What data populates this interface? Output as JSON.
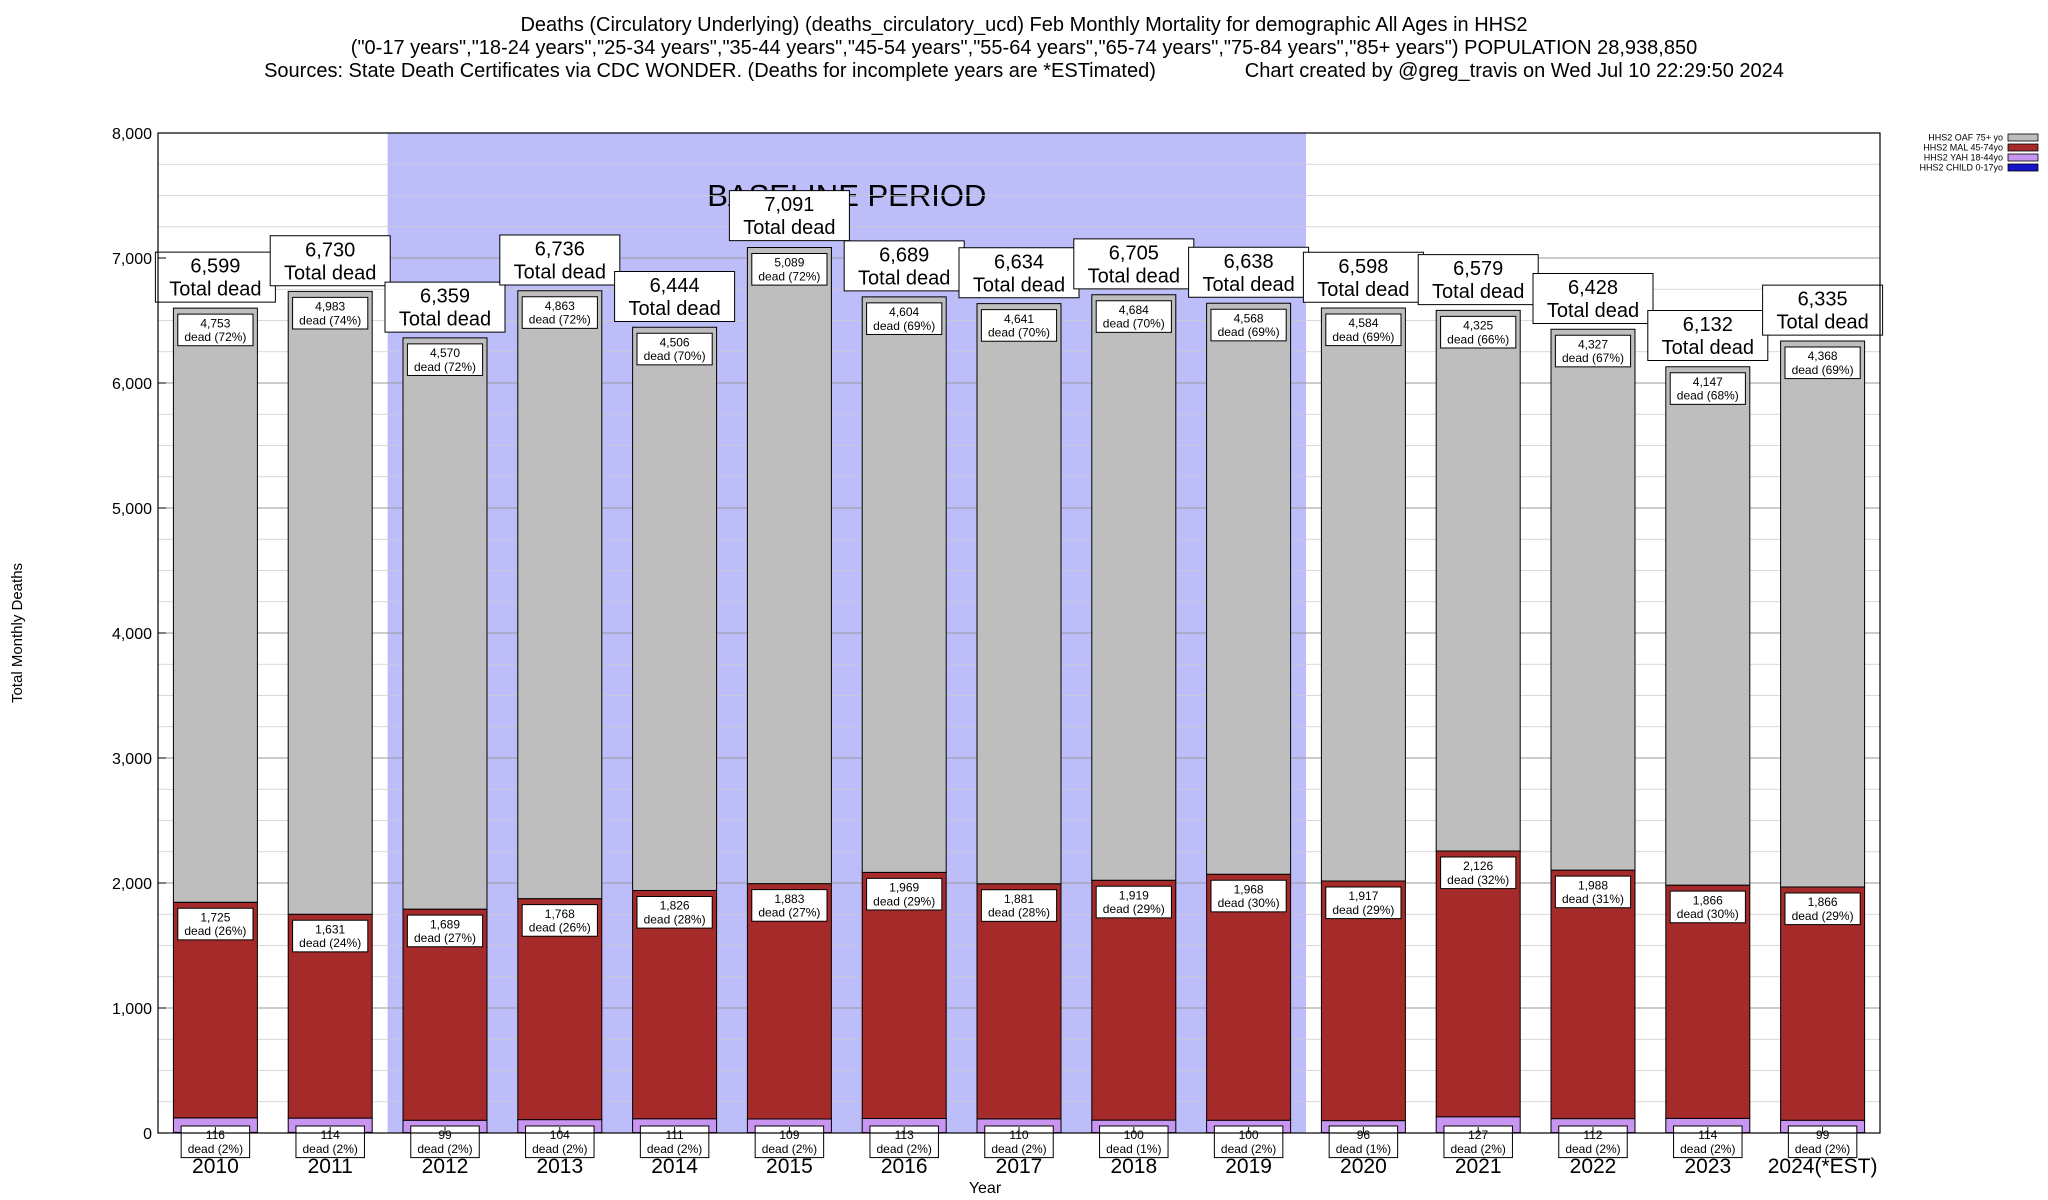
{
  "titles": {
    "line1": "Deaths (Circulatory Underlying) (deaths_circulatory_ucd) Feb Monthly Mortality for demographic All Ages in HHS2",
    "line2": "(\"0-17 years\",\"18-24 years\",\"25-34 years\",\"35-44 years\",\"45-54 years\",\"55-64 years\",\"65-74 years\",\"75-84 years\",\"85+ years\") POPULATION 28,938,850",
    "line3": "Sources: State Death Certificates via CDC WONDER. (Deaths for incomplete years are *ESTimated)                Chart created by @greg_travis on Wed Jul 10 22:29:50 2024"
  },
  "chart_data": {
    "type": "bar",
    "stacked": true,
    "xlabel": "Year",
    "ylabel": "Total Monthly Deaths",
    "ylim": [
      0,
      8000
    ],
    "yticks": [
      "0",
      "1,000",
      "2,000",
      "3,000",
      "4,000",
      "5,000",
      "6,000",
      "7,000",
      "8,000"
    ],
    "grid": true,
    "legend_position": "top-right",
    "baseline_label": "BASELINE PERIOD",
    "baseline_range": [
      "2012",
      "2019"
    ],
    "baseline_color": "#bdbdfa",
    "total_label": "Total dead",
    "categories": [
      "2010",
      "2011",
      "2012",
      "2013",
      "2014",
      "2015",
      "2016",
      "2017",
      "2018",
      "2019",
      "2020",
      "2021",
      "2022",
      "2023",
      "2024(*EST)"
    ],
    "totals": [
      6599,
      6730,
      6359,
      6736,
      6444,
      7091,
      6689,
      6634,
      6705,
      6638,
      6598,
      6579,
      6428,
      6132,
      6335
    ],
    "total_labels": [
      "6,599",
      "6,730",
      "6,359",
      "6,736",
      "6,444",
      "7,091",
      "6,689",
      "6,634",
      "6,705",
      "6,638",
      "6,598",
      "6,579",
      "6,428",
      "6,132",
      "6,335"
    ],
    "series": [
      {
        "name": "HHS2 CHILD 0-17yo",
        "color": "#1414c8",
        "values": [
          5,
          5,
          3,
          3,
          3,
          3,
          3,
          3,
          3,
          2,
          3,
          3,
          3,
          3,
          3
        ],
        "labels": [
          "",
          "",
          "",
          "",
          "",
          "",
          "",
          "",
          "",
          "",
          "",
          "",
          "",
          "",
          ""
        ]
      },
      {
        "name": "HHS2 YAH 18-44yo",
        "color": "#c896f0",
        "values": [
          116,
          114,
          99,
          104,
          111,
          109,
          113,
          110,
          100,
          100,
          96,
          127,
          112,
          114,
          99
        ],
        "labels": [
          "116\ndead (2%)",
          "114\ndead (2%)",
          "99\ndead (2%)",
          "104\ndead (2%)",
          "111\ndead (2%)",
          "109\ndead (2%)",
          "113\ndead (2%)",
          "110\ndead (2%)",
          "100\ndead (1%)",
          "100\ndead (2%)",
          "96\ndead (1%)",
          "127\ndead (2%)",
          "112\ndead (2%)",
          "114\ndead (2%)",
          "99\ndead (2%)"
        ]
      },
      {
        "name": "HHS2 MAL 45-74yo",
        "color": "#a52a2a",
        "values": [
          1725,
          1631,
          1689,
          1768,
          1826,
          1883,
          1969,
          1881,
          1919,
          1968,
          1917,
          2126,
          1988,
          1866,
          1866
        ],
        "labels": [
          "1,725\ndead (26%)",
          "1,631\ndead (24%)",
          "1,689\ndead (27%)",
          "1,768\ndead (26%)",
          "1,826\ndead (28%)",
          "1,883\ndead (27%)",
          "1,969\ndead (29%)",
          "1,881\ndead (28%)",
          "1,919\ndead (29%)",
          "1,968\ndead (30%)",
          "1,917\ndead (29%)",
          "2,126\ndead (32%)",
          "1,988\ndead (31%)",
          "1,866\ndead (30%)",
          "1,866\ndead (29%)"
        ]
      },
      {
        "name": "HHS2 OAF 75+ yo",
        "color": "#bebebe",
        "values": [
          4753,
          4983,
          4570,
          4863,
          4506,
          5089,
          4604,
          4641,
          4684,
          4568,
          4584,
          4325,
          4327,
          4147,
          4368
        ],
        "labels": [
          "4,753\ndead (72%)",
          "4,983\ndead (74%)",
          "4,570\ndead (72%)",
          "4,863\ndead (72%)",
          "4,506\ndead (70%)",
          "5,089\ndead (72%)",
          "4,604\ndead (69%)",
          "4,641\ndead (70%)",
          "4,684\ndead (70%)",
          "4,568\ndead (69%)",
          "4,584\ndead (69%)",
          "4,325\ndead (66%)",
          "4,327\ndead (67%)",
          "4,147\ndead (68%)",
          "4,368\ndead (69%)"
        ]
      }
    ]
  }
}
